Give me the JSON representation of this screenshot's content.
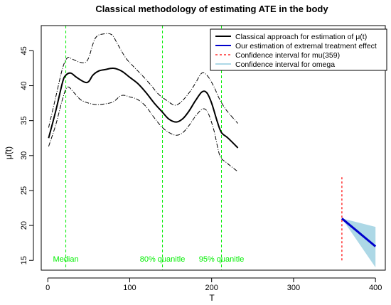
{
  "chart_data": {
    "type": "line",
    "title": "Classical methodology of estimating ATE in the body",
    "xlabel": "T",
    "ylabel": "μ̃(t)",
    "xlim": [
      -8,
      412
    ],
    "ylim": [
      13.6,
      48.6
    ],
    "x_ticks": [
      0,
      100,
      200,
      300,
      400
    ],
    "y_ticks": [
      15,
      20,
      25,
      30,
      35,
      40,
      45
    ],
    "x_tick_labels": [
      "0",
      "100",
      "200",
      "300",
      "400"
    ],
    "y_tick_labels": [
      "15",
      "20",
      "25",
      "30",
      "35",
      "40",
      "45"
    ],
    "grid": false,
    "legend_position": "top-right",
    "legend": [
      {
        "label": "Classical approach for estimation of μ(t)",
        "color": "#000000",
        "style": "solid"
      },
      {
        "label": "Our estimation of extremal treatment effect",
        "color": "#0000cc",
        "style": "solid"
      },
      {
        "label": "Confidence interval for mu(359)",
        "color": "#ff0000",
        "style": "dashed"
      },
      {
        "label": "Confidence interval for omega",
        "color": "#add8e6",
        "style": "fill"
      }
    ],
    "series": [
      {
        "role": "estimate",
        "color": "#000000",
        "points": [
          [
            1,
            32.5
          ],
          [
            10,
            36.5
          ],
          [
            18,
            40.5
          ],
          [
            22,
            41.5
          ],
          [
            28,
            41.8
          ],
          [
            35,
            41.2
          ],
          [
            45,
            40.5
          ],
          [
            50,
            40.6
          ],
          [
            55,
            41.5
          ],
          [
            62,
            42.1
          ],
          [
            70,
            42.3
          ],
          [
            80,
            42.5
          ],
          [
            90,
            42.1
          ],
          [
            100,
            41.2
          ],
          [
            110,
            40.3
          ],
          [
            120,
            39.0
          ],
          [
            130,
            37.5
          ],
          [
            140,
            36.2
          ],
          [
            148,
            35.2
          ],
          [
            157,
            34.8
          ],
          [
            165,
            35.3
          ],
          [
            172,
            36.3
          ],
          [
            180,
            37.8
          ],
          [
            188,
            39.1
          ],
          [
            194,
            39.0
          ],
          [
            200,
            37.5
          ],
          [
            207,
            34.8
          ],
          [
            212,
            33.3
          ],
          [
            220,
            32.5
          ],
          [
            232,
            31.1
          ]
        ]
      },
      {
        "role": "upper-band",
        "color": "#000000",
        "points": [
          [
            1,
            34.0
          ],
          [
            10,
            38.5
          ],
          [
            18,
            42.5
          ],
          [
            24,
            44.0
          ],
          [
            30,
            43.8
          ],
          [
            38,
            43.4
          ],
          [
            45,
            43.3
          ],
          [
            50,
            44.0
          ],
          [
            58,
            46.8
          ],
          [
            68,
            47.4
          ],
          [
            78,
            47.3
          ],
          [
            85,
            46.0
          ],
          [
            95,
            44.0
          ],
          [
            105,
            42.7
          ],
          [
            115,
            41.5
          ],
          [
            125,
            40.2
          ],
          [
            135,
            38.8
          ],
          [
            145,
            37.9
          ],
          [
            155,
            37.2
          ],
          [
            163,
            37.7
          ],
          [
            172,
            38.9
          ],
          [
            180,
            40.3
          ],
          [
            188,
            41.8
          ],
          [
            195,
            41.4
          ],
          [
            203,
            39.8
          ],
          [
            210,
            38.0
          ],
          [
            218,
            36.5
          ],
          [
            232,
            34.6
          ]
        ]
      },
      {
        "role": "lower-band",
        "color": "#000000",
        "points": [
          [
            1,
            31.3
          ],
          [
            10,
            34.5
          ],
          [
            18,
            38.1
          ],
          [
            24,
            39.8
          ],
          [
            32,
            39.0
          ],
          [
            40,
            38.0
          ],
          [
            50,
            37.5
          ],
          [
            60,
            37.3
          ],
          [
            70,
            37.4
          ],
          [
            80,
            37.7
          ],
          [
            90,
            38.6
          ],
          [
            100,
            38.4
          ],
          [
            110,
            38.0
          ],
          [
            120,
            37.0
          ],
          [
            130,
            35.4
          ],
          [
            140,
            34.0
          ],
          [
            148,
            33.3
          ],
          [
            157,
            32.9
          ],
          [
            165,
            33.3
          ],
          [
            173,
            34.4
          ],
          [
            182,
            35.9
          ],
          [
            190,
            36.7
          ],
          [
            196,
            36.0
          ],
          [
            203,
            33.5
          ],
          [
            210,
            30.0
          ],
          [
            218,
            29.0
          ],
          [
            232,
            27.7
          ]
        ]
      },
      {
        "role": "extremal-effect",
        "color": "#0000cc",
        "points": [
          [
            359,
            21.0
          ],
          [
            400,
            17.0
          ]
        ]
      }
    ],
    "vlines": [
      {
        "x": 22,
        "label": "Median",
        "color": "#00ee00"
      },
      {
        "x": 140,
        "label": "80% quanitle",
        "color": "#00ee00"
      },
      {
        "x": 212,
        "label": "95% quanitle",
        "color": "#00ee00"
      }
    ],
    "ci_mu359": {
      "x": 359,
      "y_low": 15.0,
      "y_high": 27.0,
      "color": "#ff0000"
    },
    "ci_omega": {
      "color": "#add8e6",
      "points": [
        [
          359,
          21.0
        ],
        [
          400,
          19.8
        ],
        [
          400,
          14.0
        ]
      ]
    }
  }
}
